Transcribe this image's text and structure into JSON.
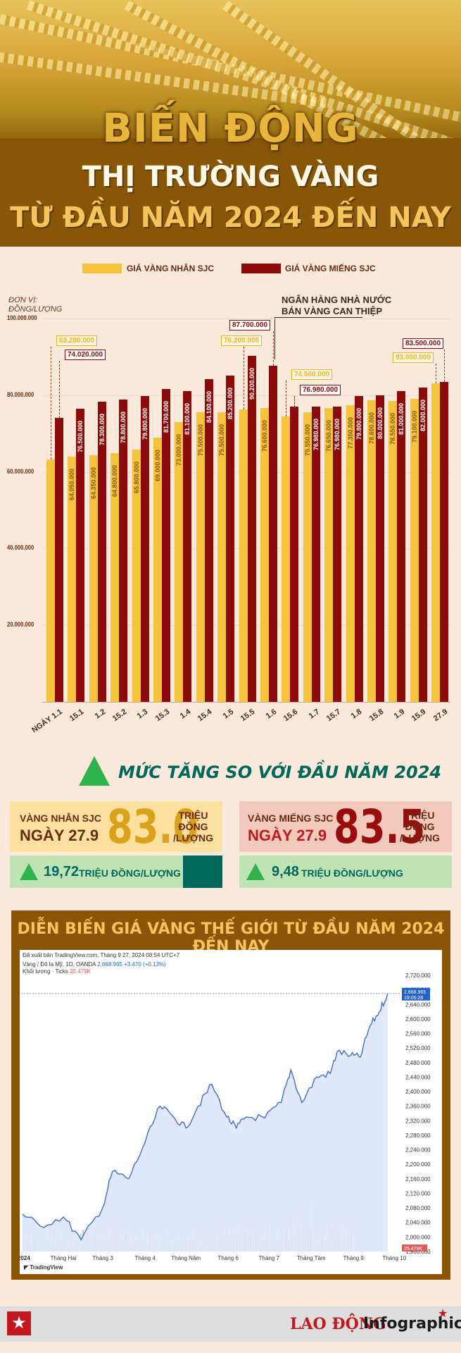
{
  "header": {
    "title_line1": "BIẾN ĐỘNG",
    "title_line2": "THỊ TRƯỜNG VÀNG",
    "title_line3": "TỪ ĐẦU NĂM 2024 ĐẾN NAY"
  },
  "colors": {
    "ring": "#f6c33c",
    "bar": "#8c0a0a",
    "accent_green": "#00675b",
    "brown": "#8a5509"
  },
  "chart_data": [
    {
      "type": "bar",
      "title": "",
      "unit_label": "ĐƠN VỊ: ĐỒNG/LƯỢNG",
      "ylim": [
        0,
        100000000
      ],
      "yticks": [
        "100.000.000",
        "80.000.000",
        "60.000.000",
        "40.000.000",
        "20.000.000"
      ],
      "legend_placement": "top",
      "categories": [
        "NGÀY 1.1",
        "15.1",
        "1.2",
        "15.2",
        "1.3",
        "15.3",
        "1.4",
        "15.4",
        "1.5",
        "15.5",
        "1.6",
        "15.6",
        "1.7",
        "15.7",
        "1.8",
        "15.8",
        "1.9",
        "15.9",
        "27.9"
      ],
      "series": [
        {
          "name": "GIÁ VÀNG NHẪN SJC",
          "color": "#f6c33c",
          "values": [
            63280000,
            64050000,
            64350000,
            64800000,
            65800000,
            69000000,
            73000000,
            75500000,
            75500000,
            76200000,
            76600000,
            74500000,
            75550000,
            76650000,
            77350000,
            78600000,
            78550000,
            79100000,
            83000000
          ],
          "labels": [
            "",
            "64.050.000",
            "64.350.000",
            "64.800.000",
            "65.800.000",
            "69.000.000",
            "73.000.000",
            "75.500.000",
            "75.500.000",
            "",
            "76.600.000",
            "",
            "75.550.000",
            "76.650.000",
            "77.350.000",
            "78.600.000",
            "78.550.000",
            "79.100.000",
            ""
          ]
        },
        {
          "name": "GIÁ VÀNG MIẾNG SJC",
          "color": "#8c0a0a",
          "values": [
            74020000,
            76500000,
            78300000,
            78800000,
            79800000,
            81700000,
            81100000,
            84100000,
            85200000,
            90200000,
            87700000,
            76980000,
            76980000,
            76980000,
            79800000,
            80000000,
            81000000,
            82000000,
            83500000
          ],
          "labels": [
            "",
            "76.500.000",
            "78.300.000",
            "78.800.000",
            "79.800.000",
            "81.700.000",
            "81.100.000",
            "84.100.000",
            "85.200.000",
            "90.200.000",
            "",
            "",
            "76.980.000",
            "76.980.000",
            "79.800.000",
            "80.000.000",
            "81.000.000",
            "82.000.000",
            ""
          ]
        }
      ],
      "callouts": [
        {
          "text": "63.280.000",
          "series": 0,
          "index": 0
        },
        {
          "text": "74.020.000",
          "series": 1,
          "index": 0
        },
        {
          "text": "87.700.000",
          "series": 1,
          "index": 10
        },
        {
          "text": "76.200.000",
          "series": 0,
          "index": 9
        },
        {
          "text": "74.500.000",
          "series": 0,
          "index": 11
        },
        {
          "text": "76.980.000",
          "series": 1,
          "index": 11
        },
        {
          "text": "83.500.000",
          "series": 1,
          "index": 18
        },
        {
          "text": "83.000.000",
          "series": 0,
          "index": 18
        }
      ],
      "note": [
        "NGÂN HÀNG NHÀ NƯỚC",
        "BÁN VÀNG CAN THIỆP"
      ]
    },
    {
      "type": "line",
      "title": "DIỄN BIẾN GIÁ VÀNG THẾ GIỚI TỪ ĐẦU NĂM 2024 ĐẾN NAY",
      "ylim": [
        1960,
        2720
      ],
      "yticks": [
        "2,720.000",
        "2,680.000",
        "2,640.000",
        "2,600.000",
        "2,560.000",
        "2,520.000",
        "2,480.000",
        "2,440.000",
        "2,400.000",
        "2,360.000",
        "2,320.000",
        "2,280.000",
        "2,240.000",
        "2,200.000",
        "2,160.000",
        "2,120.000",
        "2,080.000",
        "2,040.000",
        "2,000.000",
        "1,960.000"
      ],
      "x_labels": [
        "2024",
        "Tháng Hai",
        "Tháng 3",
        "Tháng 4",
        "Tháng Năm",
        "Tháng 6",
        "Tháng 7",
        "Tháng Tám",
        "Tháng 9",
        "Tháng 10"
      ],
      "x": [
        "2024-01-02",
        "2024-01-15",
        "2024-02-01",
        "2024-02-14",
        "2024-03-01",
        "2024-03-08",
        "2024-03-20",
        "2024-04-01",
        "2024-04-12",
        "2024-04-22",
        "2024-05-01",
        "2024-05-10",
        "2024-05-20",
        "2024-05-31",
        "2024-06-07",
        "2024-06-14",
        "2024-06-28",
        "2024-07-10",
        "2024-07-17",
        "2024-07-25",
        "2024-08-05",
        "2024-08-15",
        "2024-08-20",
        "2024-08-30",
        "2024-09-06",
        "2024-09-13",
        "2024-09-20",
        "2024-09-26"
      ],
      "values": [
        2063,
        2030,
        2055,
        1992,
        2082,
        2180,
        2160,
        2260,
        2360,
        2330,
        2300,
        2360,
        2420,
        2330,
        2300,
        2330,
        2328,
        2370,
        2460,
        2370,
        2440,
        2450,
        2510,
        2500,
        2495,
        2580,
        2620,
        2670
      ],
      "last_price": "2,668.965",
      "last_time": "19:05:28",
      "volume_label": "25.479K"
    }
  ],
  "increase": {
    "heading": "MỨC TĂNG SO VỚI ĐẦU NĂM 2024",
    "ring": {
      "label": "VÀNG NHẪN SJC",
      "date": "NGÀY 27.9",
      "value": "83.0",
      "unit": [
        "TRIỆU",
        "ĐỒNG",
        "/LƯỢNG"
      ],
      "increase_value": "19,72",
      "increase_unit": "TRIỆU ĐỒNG/LƯỢNG"
    },
    "bar": {
      "label": "VÀNG MIẾNG SJC",
      "date": "NGÀY 27.9",
      "value": "83.5",
      "unit": [
        "TRIỆU",
        "ĐỒNG",
        "/LƯỢNG"
      ],
      "increase_value": "9,48",
      "increase_unit": "TRIỆU ĐỒNG/LƯỢNG"
    }
  },
  "tradingview": {
    "published": "Đã xuất bản TradingView.com, Tháng 9 27, 2024 08:54 UTC+7",
    "symbol_line": "Vàng / Đô la Mỹ, 1D, OANDA",
    "symbol_price": "2,668.965",
    "symbol_change": "+3.470 (+0.13%)",
    "volume_line": "Khối lượng · Ticks",
    "volume_value": "25.479K",
    "logo_text": "TradingView"
  },
  "footer": {
    "brand_left": "LAO ĐỘNG",
    "brand_right": "Infographic"
  }
}
